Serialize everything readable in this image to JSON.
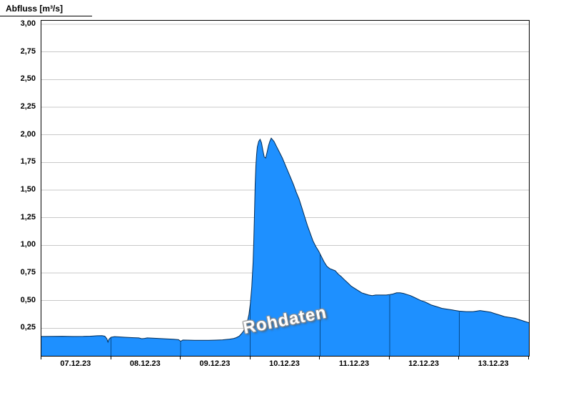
{
  "page": {
    "background": "#ffffff"
  },
  "chart_data": {
    "type": "area",
    "title": "Abfluss [m³/s]",
    "watermark": "Rohdaten",
    "xlim_days": [
      0,
      7
    ],
    "ylim": [
      0,
      3
    ],
    "grid": true,
    "legend": "none",
    "grid_color": "#c8c8c8",
    "axis_color": "#000000",
    "day_line_color": "#003a70",
    "y_ticks": [
      {
        "label": "3,00",
        "value": 3.0
      },
      {
        "label": "2,75",
        "value": 2.75
      },
      {
        "label": "2,50",
        "value": 2.5
      },
      {
        "label": "2,25",
        "value": 2.25
      },
      {
        "label": "2,00",
        "value": 2.0
      },
      {
        "label": "1,75",
        "value": 1.75
      },
      {
        "label": "1,50",
        "value": 1.5
      },
      {
        "label": "1,25",
        "value": 1.25
      },
      {
        "label": "1,00",
        "value": 1.0
      },
      {
        "label": "0,75",
        "value": 0.75
      },
      {
        "label": "0,50",
        "value": 0.5
      },
      {
        "label": "0,25",
        "value": 0.25
      }
    ],
    "x_ticks": [
      {
        "label": "07.12.23",
        "day": 0
      },
      {
        "label": "08.12.23",
        "day": 1
      },
      {
        "label": "09.12.23",
        "day": 2
      },
      {
        "label": "10.12.23",
        "day": 3
      },
      {
        "label": "11.12.23",
        "day": 4
      },
      {
        "label": "12.12.23",
        "day": 5
      },
      {
        "label": "13.12.23",
        "day": 6
      }
    ],
    "day_boundaries": [
      1,
      2,
      3,
      4,
      5,
      6
    ],
    "series": [
      {
        "name": "Abfluss Rohdaten",
        "color": "#1e90ff",
        "outline": "#002b55",
        "points": [
          [
            0,
            0.175
          ],
          [
            0.15,
            0.176
          ],
          [
            0.3,
            0.177
          ],
          [
            0.45,
            0.175
          ],
          [
            0.6,
            0.176
          ],
          [
            0.7,
            0.178
          ],
          [
            0.8,
            0.182
          ],
          [
            0.87,
            0.183
          ],
          [
            0.91,
            0.178
          ],
          [
            0.94,
            0.155
          ],
          [
            0.955,
            0.125
          ],
          [
            0.97,
            0.15
          ],
          [
            1,
            0.168
          ],
          [
            1.05,
            0.174
          ],
          [
            1.1,
            0.172
          ],
          [
            1.2,
            0.168
          ],
          [
            1.3,
            0.165
          ],
          [
            1.4,
            0.162
          ],
          [
            1.44,
            0.155
          ],
          [
            1.48,
            0.158
          ],
          [
            1.52,
            0.162
          ],
          [
            1.6,
            0.16
          ],
          [
            1.7,
            0.157
          ],
          [
            1.8,
            0.153
          ],
          [
            1.9,
            0.15
          ],
          [
            1.97,
            0.146
          ],
          [
            2,
            0.132
          ],
          [
            2.03,
            0.143
          ],
          [
            2.1,
            0.142
          ],
          [
            2.2,
            0.141
          ],
          [
            2.3,
            0.14
          ],
          [
            2.4,
            0.14
          ],
          [
            2.5,
            0.142
          ],
          [
            2.6,
            0.145
          ],
          [
            2.7,
            0.151
          ],
          [
            2.76,
            0.157
          ],
          [
            2.8,
            0.165
          ],
          [
            2.84,
            0.178
          ],
          [
            2.87,
            0.198
          ],
          [
            2.9,
            0.222
          ],
          [
            2.92,
            0.248
          ],
          [
            2.94,
            0.278
          ],
          [
            2.96,
            0.318
          ],
          [
            2.98,
            0.375
          ],
          [
            3,
            0.47
          ],
          [
            3.02,
            0.62
          ],
          [
            3.04,
            0.85
          ],
          [
            3.05,
            1.05
          ],
          [
            3.06,
            1.3
          ],
          [
            3.07,
            1.55
          ],
          [
            3.08,
            1.72
          ],
          [
            3.09,
            1.82
          ],
          [
            3.1,
            1.89
          ],
          [
            3.12,
            1.94
          ],
          [
            3.14,
            1.96
          ],
          [
            3.16,
            1.93
          ],
          [
            3.18,
            1.86
          ],
          [
            3.2,
            1.8
          ],
          [
            3.22,
            1.79
          ],
          [
            3.24,
            1.84
          ],
          [
            3.26,
            1.9
          ],
          [
            3.28,
            1.94
          ],
          [
            3.3,
            1.97
          ],
          [
            3.34,
            1.94
          ],
          [
            3.38,
            1.89
          ],
          [
            3.42,
            1.84
          ],
          [
            3.46,
            1.79
          ],
          [
            3.5,
            1.73
          ],
          [
            3.54,
            1.67
          ],
          [
            3.58,
            1.61
          ],
          [
            3.62,
            1.55
          ],
          [
            3.66,
            1.48
          ],
          [
            3.7,
            1.42
          ],
          [
            3.74,
            1.34
          ],
          [
            3.78,
            1.26
          ],
          [
            3.82,
            1.18
          ],
          [
            3.86,
            1.11
          ],
          [
            3.9,
            1.04
          ],
          [
            3.94,
            0.99
          ],
          [
            3.98,
            0.95
          ],
          [
            4.02,
            0.9
          ],
          [
            4.06,
            0.85
          ],
          [
            4.1,
            0.81
          ],
          [
            4.14,
            0.79
          ],
          [
            4.18,
            0.78
          ],
          [
            4.22,
            0.77
          ],
          [
            4.26,
            0.74
          ],
          [
            4.3,
            0.72
          ],
          [
            4.35,
            0.69
          ],
          [
            4.4,
            0.66
          ],
          [
            4.45,
            0.63
          ],
          [
            4.5,
            0.61
          ],
          [
            4.55,
            0.59
          ],
          [
            4.6,
            0.57
          ],
          [
            4.65,
            0.56
          ],
          [
            4.7,
            0.55
          ],
          [
            4.75,
            0.545
          ],
          [
            4.8,
            0.55
          ],
          [
            4.85,
            0.55
          ],
          [
            4.9,
            0.55
          ],
          [
            4.95,
            0.55
          ],
          [
            5,
            0.555
          ],
          [
            5.05,
            0.56
          ],
          [
            5.1,
            0.57
          ],
          [
            5.15,
            0.57
          ],
          [
            5.2,
            0.565
          ],
          [
            5.25,
            0.555
          ],
          [
            5.3,
            0.545
          ],
          [
            5.35,
            0.53
          ],
          [
            5.4,
            0.515
          ],
          [
            5.45,
            0.5
          ],
          [
            5.5,
            0.49
          ],
          [
            5.55,
            0.475
          ],
          [
            5.6,
            0.46
          ],
          [
            5.65,
            0.45
          ],
          [
            5.7,
            0.44
          ],
          [
            5.75,
            0.43
          ],
          [
            5.8,
            0.425
          ],
          [
            5.85,
            0.42
          ],
          [
            5.9,
            0.415
          ],
          [
            5.95,
            0.41
          ],
          [
            6,
            0.405
          ],
          [
            6.1,
            0.4
          ],
          [
            6.2,
            0.4
          ],
          [
            6.25,
            0.405
          ],
          [
            6.3,
            0.41
          ],
          [
            6.35,
            0.405
          ],
          [
            6.4,
            0.4
          ],
          [
            6.45,
            0.395
          ],
          [
            6.5,
            0.385
          ],
          [
            6.55,
            0.375
          ],
          [
            6.6,
            0.365
          ],
          [
            6.65,
            0.355
          ],
          [
            6.7,
            0.35
          ],
          [
            6.75,
            0.345
          ],
          [
            6.8,
            0.34
          ],
          [
            6.85,
            0.33
          ],
          [
            6.9,
            0.32
          ],
          [
            6.95,
            0.31
          ],
          [
            7,
            0.3
          ]
        ]
      }
    ]
  }
}
